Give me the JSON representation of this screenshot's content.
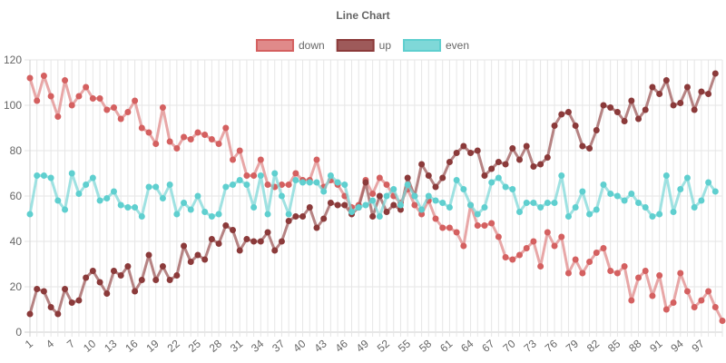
{
  "chart_data": {
    "type": "line",
    "title": "Line Chart",
    "xlabel": "",
    "ylabel": "",
    "ylim": [
      0,
      120
    ],
    "yticks": [
      0,
      20,
      40,
      60,
      80,
      100,
      120
    ],
    "grid": true,
    "legend_position": "top",
    "x": [
      1,
      2,
      3,
      4,
      5,
      6,
      7,
      8,
      9,
      10,
      11,
      12,
      13,
      14,
      15,
      16,
      17,
      18,
      19,
      20,
      21,
      22,
      23,
      24,
      25,
      26,
      27,
      28,
      29,
      30,
      31,
      32,
      33,
      34,
      35,
      36,
      37,
      38,
      39,
      40,
      41,
      42,
      43,
      44,
      45,
      46,
      47,
      48,
      49,
      50,
      51,
      52,
      53,
      54,
      55,
      56,
      57,
      58,
      59,
      60,
      61,
      62,
      63,
      64,
      65,
      66,
      67,
      68,
      69,
      70,
      71,
      72,
      73,
      74,
      75,
      76,
      77,
      78,
      79,
      80,
      81,
      82,
      83,
      84,
      85,
      86,
      87,
      88,
      89,
      90,
      91,
      92,
      93,
      94,
      95,
      96,
      97,
      98,
      99,
      100
    ],
    "x_tick_labels": [
      "1",
      "4",
      "7",
      "10",
      "13",
      "16",
      "19",
      "22",
      "25",
      "28",
      "31",
      "34",
      "37",
      "40",
      "43",
      "46",
      "49",
      "52",
      "55",
      "58",
      "61",
      "64",
      "67",
      "70",
      "73",
      "76",
      "79",
      "82",
      "85",
      "88",
      "91",
      "94",
      "97"
    ],
    "series": [
      {
        "name": "down",
        "color": "#d46060",
        "fill": "#e08a8a",
        "values": [
          112,
          102,
          113,
          104,
          95,
          111,
          100,
          104,
          108,
          103,
          103,
          98,
          99,
          94,
          97,
          102,
          90,
          88,
          83,
          99,
          84,
          81,
          86,
          85,
          88,
          87,
          85,
          83,
          90,
          76,
          80,
          69,
          69,
          76,
          65,
          64,
          65,
          65,
          70,
          67,
          67,
          76,
          64,
          67,
          65,
          60,
          55,
          56,
          67,
          61,
          68,
          65,
          60,
          57,
          63,
          56,
          52,
          58,
          50,
          46,
          46,
          44,
          38,
          56,
          47,
          47,
          48,
          42,
          33,
          32,
          34,
          37,
          40,
          29,
          44,
          38,
          42,
          26,
          32,
          26,
          31,
          35,
          37,
          27,
          26,
          29,
          14,
          24,
          27,
          16,
          25,
          10,
          13,
          26,
          18,
          11,
          14,
          18,
          11,
          5
        ]
      },
      {
        "name": "up",
        "color": "#8b3a3a",
        "fill": "#9e5a5a",
        "values": [
          8,
          19,
          18,
          11,
          8,
          19,
          13,
          14,
          24,
          27,
          22,
          17,
          27,
          25,
          29,
          18,
          23,
          34,
          23,
          29,
          23,
          25,
          38,
          31,
          34,
          32,
          41,
          39,
          47,
          45,
          36,
          41,
          40,
          40,
          44,
          36,
          40,
          49,
          51,
          51,
          55,
          46,
          50,
          57,
          56,
          56,
          52,
          55,
          66,
          51,
          60,
          53,
          56,
          54,
          68,
          60,
          74,
          69,
          64,
          68,
          75,
          79,
          82,
          79,
          80,
          69,
          72,
          75,
          74,
          81,
          76,
          82,
          73,
          74,
          77,
          91,
          96,
          97,
          91,
          82,
          81,
          89,
          100,
          99,
          97,
          93,
          102,
          94,
          98,
          108,
          105,
          111,
          100,
          101,
          108,
          98,
          106,
          105,
          114,
          null
        ]
      },
      {
        "name": "even",
        "color": "#5fcfcf",
        "fill": "#7fd8d8",
        "values": [
          52,
          69,
          69,
          68,
          58,
          54,
          70,
          61,
          65,
          68,
          58,
          59,
          62,
          56,
          55,
          55,
          51,
          64,
          64,
          59,
          65,
          52,
          57,
          54,
          60,
          53,
          51,
          52,
          64,
          65,
          67,
          65,
          55,
          69,
          52,
          70,
          60,
          52,
          67,
          66,
          66,
          66,
          62,
          69,
          66,
          65,
          53,
          55,
          56,
          58,
          51,
          60,
          63,
          56,
          65,
          60,
          54,
          60,
          58,
          57,
          55,
          67,
          63,
          56,
          52,
          55,
          66,
          68,
          64,
          63,
          53,
          57,
          57,
          55,
          57,
          57,
          69,
          51,
          55,
          62,
          52,
          54,
          65,
          61,
          60,
          58,
          61,
          57,
          55,
          51,
          52,
          69,
          53,
          63,
          68,
          55,
          58,
          66,
          62,
          null
        ]
      }
    ]
  }
}
